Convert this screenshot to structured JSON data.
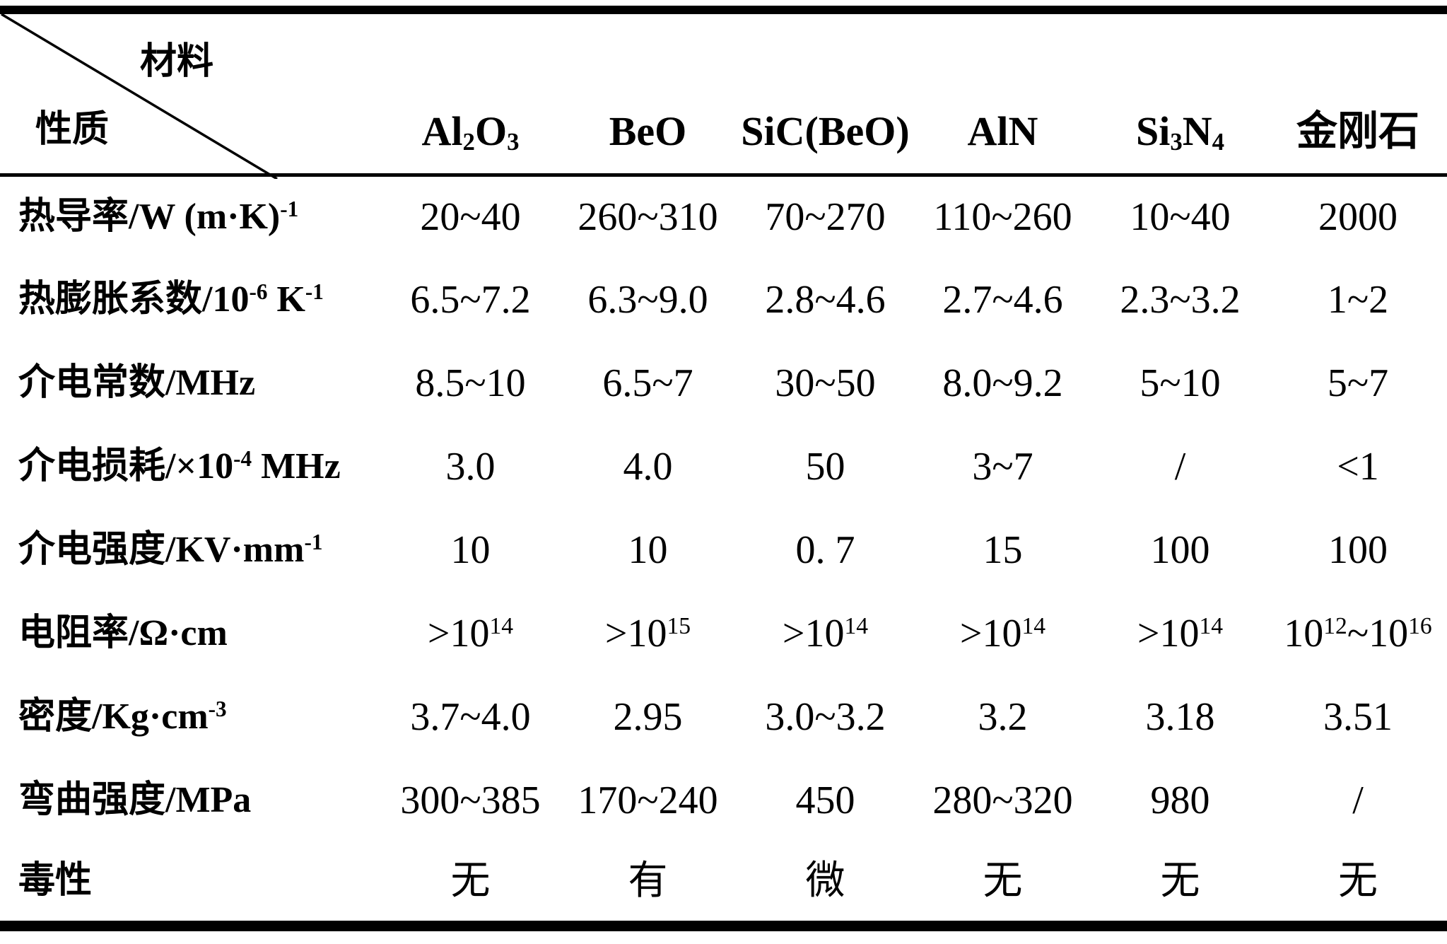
{
  "table": {
    "corner": {
      "top_right_label": "材料",
      "bottom_left_label": "性质"
    },
    "columns": [
      "Al_{2}O_{3}",
      "BeO",
      "SiC(BeO)",
      "AlN",
      "Si_{3}N_{4}",
      "金刚石"
    ],
    "rows": [
      {
        "property": "热导率/W (m·K)^{-1}",
        "values": [
          "20~40",
          "260~310",
          "70~270",
          "110~260",
          "10~40",
          "2000"
        ]
      },
      {
        "property": "热膨胀系数/10^{-6} K^{-1}",
        "values": [
          "6.5~7.2",
          "6.3~9.0",
          "2.8~4.6",
          "2.7~4.6",
          "2.3~3.2",
          "1~2"
        ]
      },
      {
        "property": "介电常数/MHz",
        "values": [
          "8.5~10",
          "6.5~7",
          "30~50",
          "8.0~9.2",
          "5~10",
          "5~7"
        ]
      },
      {
        "property": "介电损耗/×10^{-4} MHz",
        "values": [
          "3.0",
          "4.0",
          "50",
          "3~7",
          "/",
          "<1"
        ]
      },
      {
        "property": "介电强度/KV·mm^{-1}",
        "values": [
          "10",
          "10",
          "0. 7",
          "15",
          "100",
          "100"
        ]
      },
      {
        "property": "电阻率/Ω·cm",
        "values": [
          ">10^{14}",
          ">10^{15}",
          ">10^{14}",
          ">10^{14}",
          ">10^{14}",
          "10^{12}~10^{16}"
        ]
      },
      {
        "property": "密度/Kg·cm^{-3}",
        "values": [
          "3.7~4.0",
          "2.95",
          "3.0~3.2",
          "3.2",
          "3.18",
          "3.51"
        ]
      },
      {
        "property": "弯曲强度/MPa",
        "values": [
          "300~385",
          "170~240",
          "450",
          "280~320",
          "980",
          "/"
        ]
      },
      {
        "property": "毒性",
        "values": [
          "无",
          "有",
          "微",
          "无",
          "无",
          "无"
        ]
      }
    ]
  },
  "colors": {
    "background": "#ffffff",
    "text": "#000000",
    "border": "#000000"
  }
}
